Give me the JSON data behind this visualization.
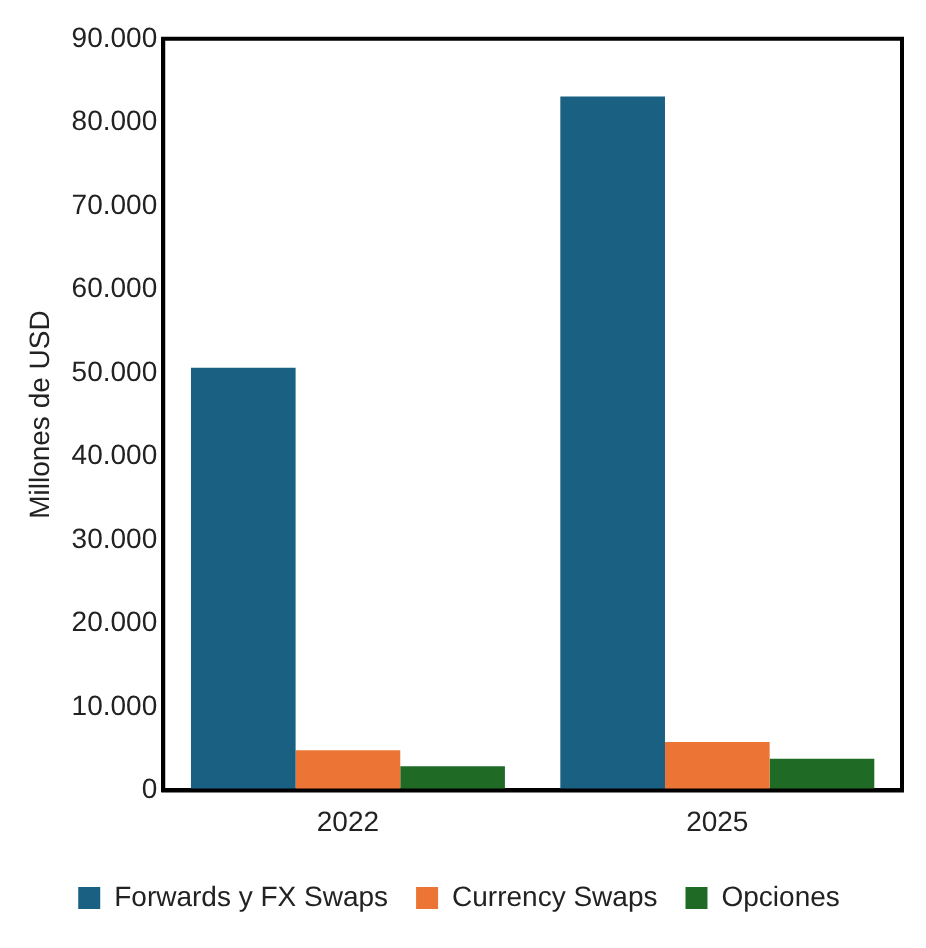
{
  "chart_data": {
    "type": "bar",
    "ylabel": "Millones de USD",
    "categories": [
      "2022",
      "2025"
    ],
    "series": [
      {
        "name": "Forwards y FX Swaps",
        "color": "#1a6083",
        "values": [
          50600,
          83100
        ]
      },
      {
        "name": "Currency Swaps",
        "color": "#ec7535",
        "values": [
          4800,
          5800
        ]
      },
      {
        "name": "Opciones",
        "color": "#1f6b26",
        "values": [
          2900,
          3800
        ]
      }
    ],
    "ylim": [
      0,
      90000
    ],
    "yticks": [
      {
        "value": 0,
        "label": "0"
      },
      {
        "value": 10000,
        "label": "10.000"
      },
      {
        "value": 20000,
        "label": "20.000"
      },
      {
        "value": 30000,
        "label": "30.000"
      },
      {
        "value": 40000,
        "label": "40.000"
      },
      {
        "value": 50000,
        "label": "50.000"
      },
      {
        "value": 60000,
        "label": "60.000"
      },
      {
        "value": 70000,
        "label": "70.000"
      },
      {
        "value": 80000,
        "label": "80.000"
      },
      {
        "value": 90000,
        "label": "90.000"
      }
    ],
    "grid": false,
    "legend": "bottom"
  }
}
